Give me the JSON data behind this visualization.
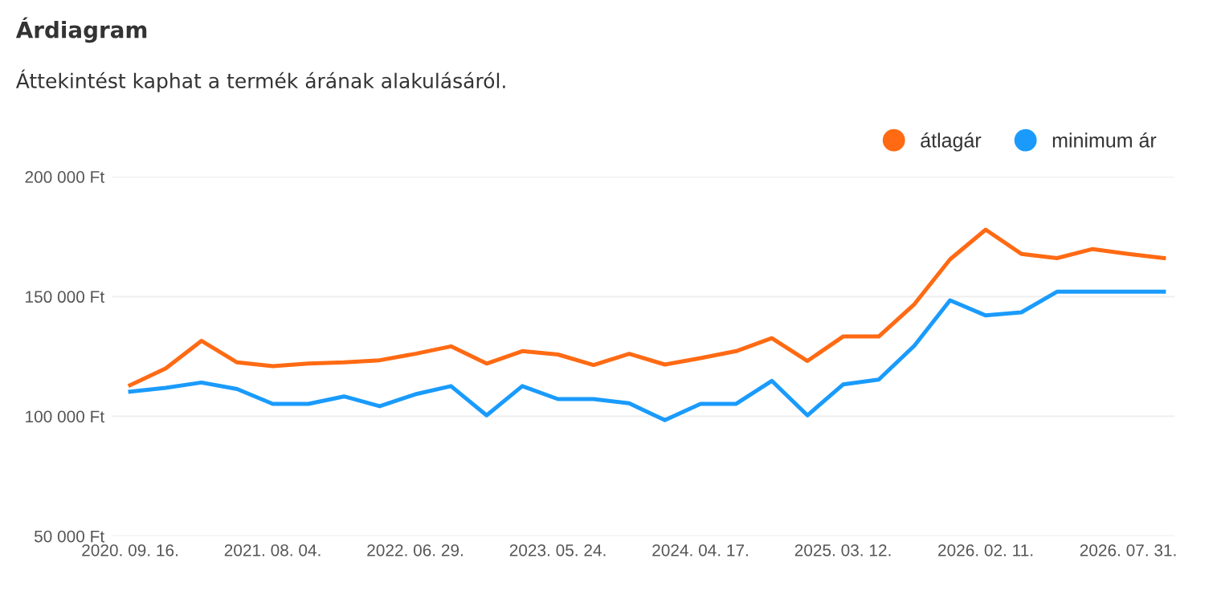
{
  "chart_data": {
    "type": "line",
    "title": "Árdiagram",
    "subtitle": "Áttekintést kaphat a termék árának alakulásáról.",
    "categories": [
      "2020. 09. 16.",
      null,
      null,
      null,
      "2021. 08. 04.",
      null,
      null,
      null,
      "2022. 06. 29.",
      null,
      null,
      null,
      "2023. 05. 24.",
      null,
      null,
      null,
      "2024. 04. 17.",
      null,
      null,
      null,
      "2025. 03. 12.",
      null,
      null,
      null,
      "2026. 02. 11.",
      null,
      null,
      null,
      "2026. 07. 31.",
      null
    ],
    "series": [
      {
        "name": "átlagár",
        "color": "#ff6a13",
        "values": [
          113000,
          120000,
          131500,
          122500,
          120900,
          122000,
          122500,
          123400,
          126100,
          129200,
          122000,
          127200,
          125800,
          121400,
          126100,
          121600,
          124300,
          127200,
          132600,
          123100,
          133300,
          133300,
          146800,
          165500,
          177900,
          167800,
          166000,
          169800,
          167800,
          166000
        ]
      },
      {
        "name": "minimum ár",
        "color": "#1a9bfc",
        "values": [
          110300,
          111900,
          114100,
          111400,
          105200,
          105200,
          108300,
          104200,
          109200,
          112600,
          100400,
          112600,
          107200,
          107200,
          105400,
          98400,
          105200,
          105200,
          114800,
          100400,
          113300,
          115300,
          129500,
          148400,
          142100,
          143400,
          152000,
          152000,
          152000,
          152000
        ]
      }
    ],
    "ylim": [
      50000,
      200000
    ],
    "yticks": [
      {
        "value": 50000,
        "label": "50 000 Ft"
      },
      {
        "value": 100000,
        "label": "100 000 Ft"
      },
      {
        "value": 150000,
        "label": "150 000 Ft"
      },
      {
        "value": 200000,
        "label": "200 000 Ft"
      }
    ],
    "grid": "y",
    "legend": "top right",
    "marker": "none",
    "line_style": "solid"
  }
}
